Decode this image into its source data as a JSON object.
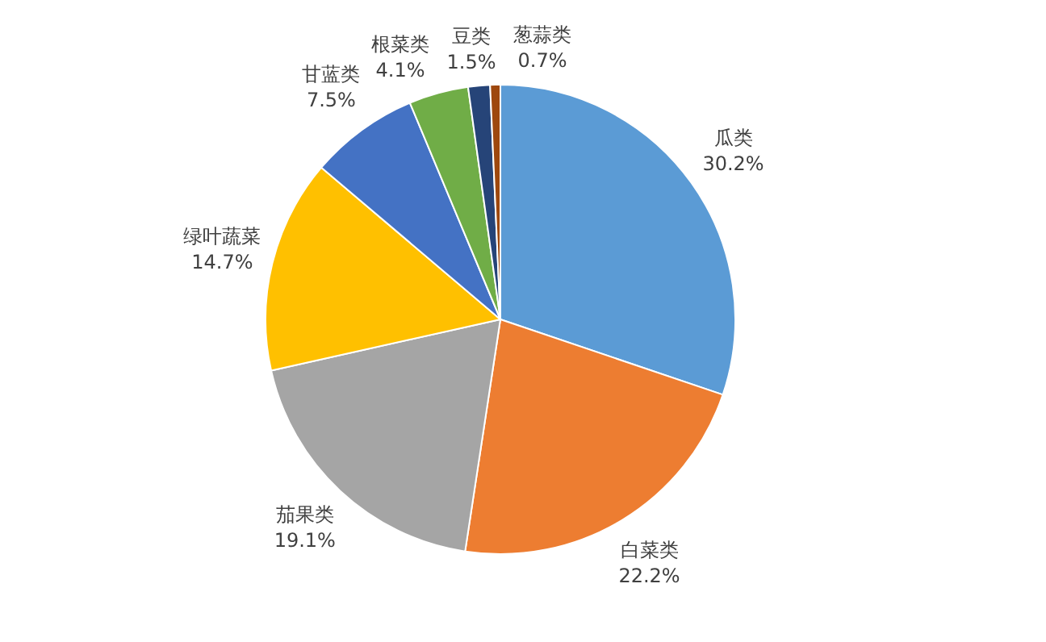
{
  "chart_data": {
    "type": "pie",
    "categories": [
      "瓜类",
      "白菜类",
      "茄果类",
      "绿叶蔬菜",
      "甘蓝类",
      "根菜类",
      "豆类",
      "葱蒜类"
    ],
    "values": [
      30.2,
      22.2,
      19.1,
      14.7,
      7.5,
      4.1,
      1.5,
      0.7
    ],
    "value_labels": [
      "30.2%",
      "22.2%",
      "19.1%",
      "14.7%",
      "7.5%",
      "4.1%",
      "1.5%",
      "0.7%"
    ],
    "colors": [
      "#5b9bd5",
      "#ed7d31",
      "#a5a5a5",
      "#ffc000",
      "#4472c4",
      "#70ad47",
      "#264478",
      "#9e480e"
    ],
    "legend": false
  }
}
